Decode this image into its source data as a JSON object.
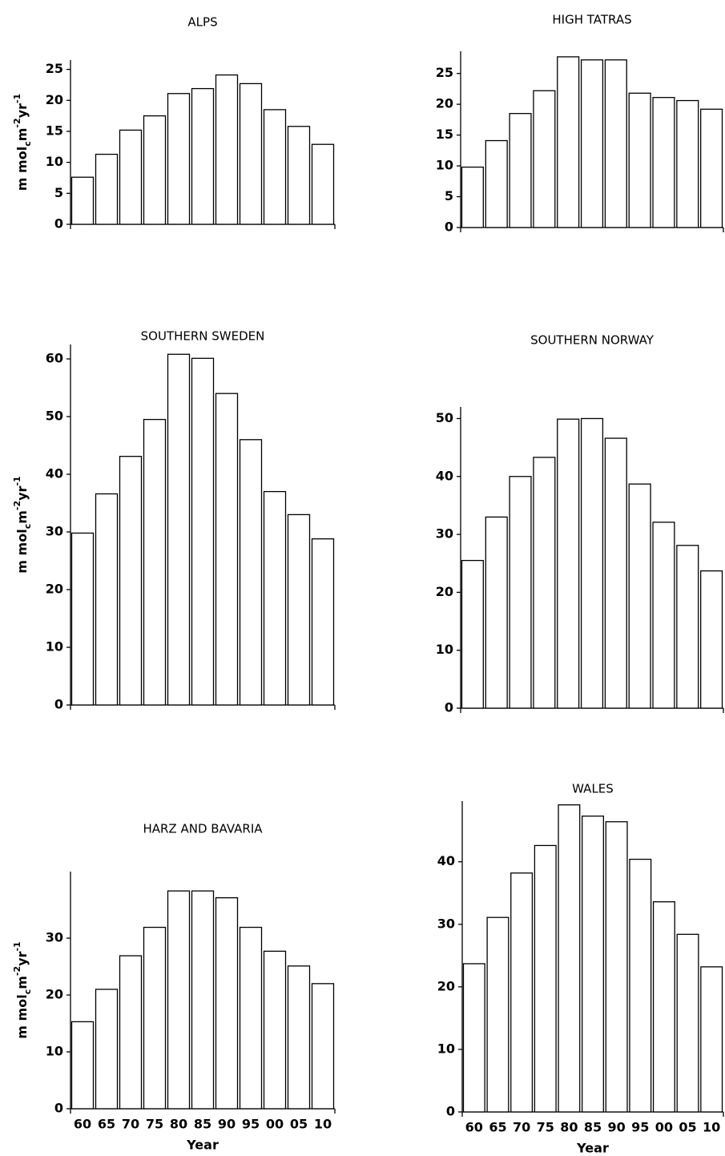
{
  "chart_data": [
    {
      "type": "bar",
      "title": "ALPS",
      "ylabel": [
        "m mol",
        "c",
        "m",
        "-2",
        "yr",
        "-1"
      ],
      "categories": [
        null,
        null,
        null,
        null,
        null,
        null,
        null,
        null,
        null,
        null,
        null
      ],
      "values": [
        7.6,
        11.3,
        15.2,
        17.5,
        21.1,
        21.9,
        24.1,
        22.7,
        18.5,
        15.8,
        12.9
      ],
      "ylim": [
        0,
        26.5
      ],
      "yticks": [
        0,
        5,
        10,
        15,
        20,
        25
      ],
      "color": "#ffffff"
    },
    {
      "type": "bar",
      "title": "HIGH TATRAS",
      "categories": [
        null,
        null,
        null,
        null,
        null,
        null,
        null,
        null,
        null,
        null,
        null
      ],
      "values": [
        9.8,
        14.1,
        18.5,
        22.2,
        27.7,
        27.2,
        27.2,
        21.8,
        21.1,
        20.6,
        19.2
      ],
      "ylim": [
        0,
        28.6
      ],
      "yticks": [
        0,
        5,
        10,
        15,
        20,
        25
      ],
      "color": "#ffffff"
    },
    {
      "type": "bar",
      "title": "SOUTHERN SWEDEN",
      "ylabel": [
        "m mol",
        "c",
        "m",
        "-2",
        "yr",
        "-1"
      ],
      "categories": [
        null,
        null,
        null,
        null,
        null,
        null,
        null,
        null,
        null,
        null,
        null
      ],
      "values": [
        29.8,
        36.6,
        43.1,
        49.5,
        60.8,
        60.1,
        54,
        46,
        37,
        33,
        28.8
      ],
      "ylim": [
        0,
        62.5
      ],
      "yticks": [
        0,
        10,
        20,
        30,
        40,
        50,
        60
      ],
      "color": "#ffffff"
    },
    {
      "type": "bar",
      "title": "SOUTHERN NORWAY",
      "categories": [
        null,
        null,
        null,
        null,
        null,
        null,
        null,
        null,
        null,
        null,
        null
      ],
      "values": [
        25.5,
        33,
        40,
        43.3,
        49.9,
        50,
        46.6,
        38.7,
        32.1,
        28.1,
        23.7
      ],
      "ylim": [
        0,
        52
      ],
      "yticks": [
        0,
        10,
        20,
        30,
        40,
        50
      ],
      "color": "#ffffff"
    },
    {
      "type": "bar",
      "title": "HARZ AND BAVARIA",
      "ylabel": [
        "m mol",
        "c",
        "m",
        "-2",
        "yr",
        "-1"
      ],
      "xlabel": "Year",
      "categories": [
        "60",
        "65",
        "70",
        "75",
        "80",
        "85",
        "90",
        "95",
        "00",
        "05",
        "10"
      ],
      "values": [
        15.3,
        21,
        26.9,
        31.9,
        38.3,
        38.3,
        37.1,
        31.9,
        27.7,
        25.1,
        22
      ],
      "ylim": [
        0,
        41.7
      ],
      "yticks": [
        0,
        10,
        20,
        30
      ],
      "color": "#ffffff"
    },
    {
      "type": "bar",
      "title": "WALES",
      "xlabel": "Year",
      "categories": [
        "60",
        "65",
        "70",
        "75",
        "80",
        "85",
        "90",
        "95",
        "00",
        "05",
        "10"
      ],
      "values": [
        23.7,
        31.1,
        38.2,
        42.6,
        49.1,
        47.3,
        46.4,
        40.4,
        33.6,
        28.4,
        23.2
      ],
      "ylim": [
        0,
        49.7
      ],
      "yticks": [
        0,
        10,
        20,
        30,
        40
      ],
      "color": "#ffffff"
    }
  ]
}
